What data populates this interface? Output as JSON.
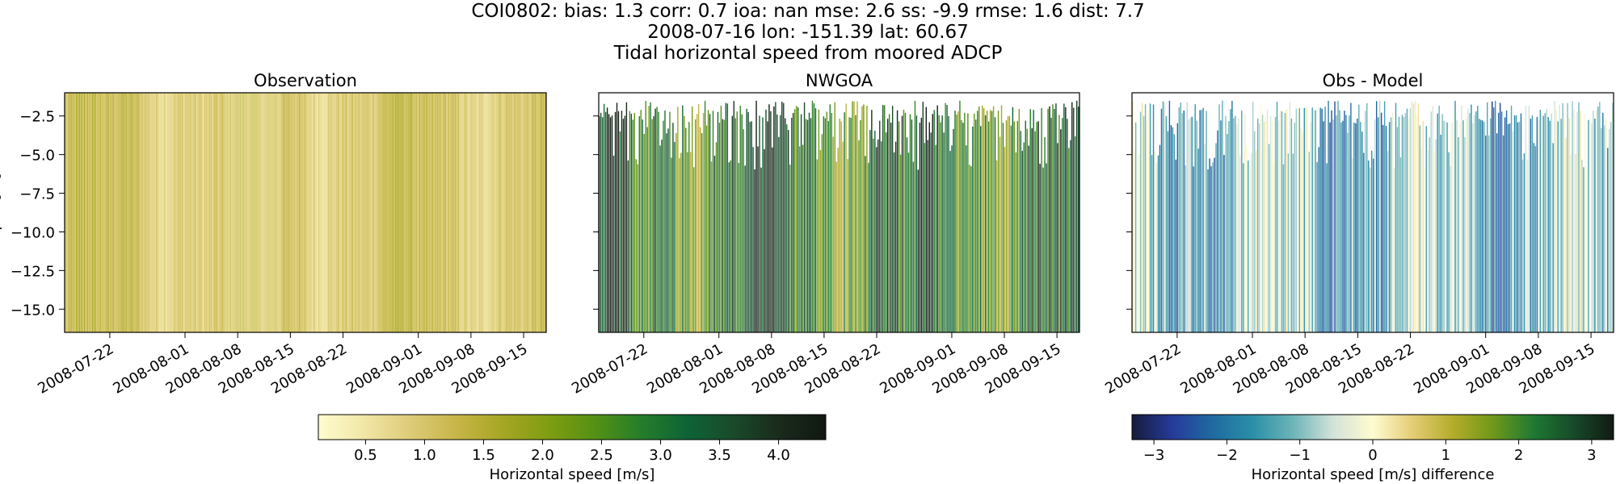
{
  "figure": {
    "title_lines": [
      "COI0802: bias: 1.3  corr: 0.7  ioa: nan  mse: 2.6  ss: -9.9  rmse: 1.6  dist: 7.7",
      "2008-07-16 lon: -151.39 lat: 60.67",
      "Tidal horizontal speed from moored ADCP"
    ]
  },
  "chart_data": [
    {
      "type": "heatmap",
      "title": "Observation",
      "xlabel": "",
      "ylabel": "Depth [m]",
      "ylim": [
        -16.5,
        -1.0
      ],
      "yticks": [
        -2.5,
        -5.0,
        -7.5,
        -10.0,
        -12.5,
        -15.0
      ],
      "ytick_labels": [
        "−2.5",
        "−5.0",
        "−7.5",
        "−10.0",
        "−12.5",
        "−15.0"
      ],
      "xlim": [
        "2008-07-16",
        "2008-09-18"
      ],
      "xtick_labels": [
        "2008-07-22",
        "2008-08-01",
        "2008-08-08",
        "2008-08-15",
        "2008-08-22",
        "2008-09-01",
        "2008-09-08",
        "2008-09-15"
      ],
      "colormap": "speed",
      "clim": [
        0.1,
        4.4
      ],
      "typical_range": [
        0.3,
        1.7
      ]
    },
    {
      "type": "heatmap",
      "title": "NWGOA",
      "xlabel": "",
      "ylim": [
        -16.5,
        -1.0
      ],
      "xlim": [
        "2008-07-16",
        "2008-09-18"
      ],
      "xtick_labels": [
        "2008-07-22",
        "2008-08-01",
        "2008-08-08",
        "2008-08-15",
        "2008-08-22",
        "2008-09-01",
        "2008-09-08",
        "2008-09-15"
      ],
      "colormap": "speed",
      "clim": [
        0.1,
        4.4
      ],
      "typical_range": [
        1.2,
        4.3
      ]
    },
    {
      "type": "heatmap",
      "title": "Obs - Model",
      "xlabel": "",
      "ylim": [
        -16.5,
        -1.0
      ],
      "xlim": [
        "2008-07-16",
        "2008-09-18"
      ],
      "xtick_labels": [
        "2008-07-22",
        "2008-08-01",
        "2008-08-08",
        "2008-08-15",
        "2008-08-22",
        "2008-09-01",
        "2008-09-08",
        "2008-09-15"
      ],
      "colormap": "diff",
      "clim": [
        -3.3,
        3.3
      ],
      "typical_range": [
        -3.0,
        0.3
      ]
    }
  ],
  "colorbars": [
    {
      "label": "Horizontal speed [m/s]",
      "range": [
        0.1,
        4.4
      ],
      "ticks": [
        0.5,
        1.0,
        1.5,
        2.0,
        2.5,
        3.0,
        3.5,
        4.0
      ],
      "tick_labels": [
        "0.5",
        "1.0",
        "1.5",
        "2.0",
        "2.5",
        "3.0",
        "3.5",
        "4.0"
      ],
      "colormap": "speed"
    },
    {
      "label": "Horizontal speed [m/s] difference",
      "range": [
        -3.3,
        3.3
      ],
      "ticks": [
        -3,
        -2,
        -1,
        0,
        1,
        2,
        3
      ],
      "tick_labels": [
        "−3",
        "−2",
        "−1",
        "0",
        "1",
        "2",
        "3"
      ],
      "colormap": "diff"
    }
  ],
  "colormaps": {
    "speed": [
      "#fefccf",
      "#f1e6a6",
      "#ddcb78",
      "#c8b548",
      "#a6a623",
      "#7f9d11",
      "#549114",
      "#257d2a",
      "#0e6336",
      "#1a4a2a",
      "#1a2a1c",
      "#111810"
    ],
    "diff": [
      "#151c3a",
      "#263a9a",
      "#1f6aa0",
      "#2a8fa8",
      "#6cb4b8",
      "#d2e2d8",
      "#fffbd0",
      "#e4cc74",
      "#b4ac2a",
      "#6f981a",
      "#1f7a32",
      "#164a2a",
      "#121a12"
    ]
  }
}
